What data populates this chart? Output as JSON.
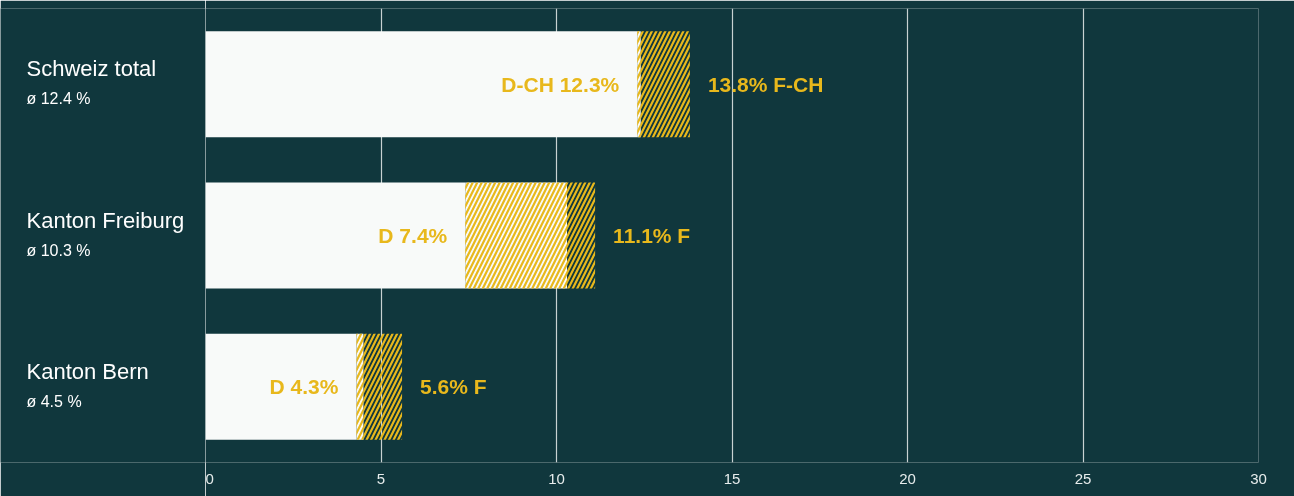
{
  "chart_data": {
    "type": "bar",
    "orientation": "horizontal",
    "stacked": true,
    "categories": [
      "Schweiz total\nø 12.4 %",
      "Kanton Freiburg\nø 10.3 %",
      "Kanton Bern\nø 4.5 %"
    ],
    "series": [
      {
        "color": "#f8faf9",
        "values": [
          12.3,
          7.4,
          4.3
        ],
        "value_labels": [
          "D-CH 12.3%",
          "D 7.4%",
          "D 4.3%"
        ]
      },
      {
        "color": "#e8b81c",
        "values": [
          0.1,
          2.9,
          0.2
        ]
      },
      {
        "color": "#e8b81c",
        "values": [
          1.4,
          0.8,
          1.1
        ]
      }
    ],
    "totals": [
      "13.8% F-CH",
      "11.1% F",
      "5.6% F"
    ],
    "xlim": [
      0,
      30
    ],
    "xticks": [
      0,
      5,
      10,
      15,
      20,
      25,
      30
    ],
    "grid": "x"
  }
}
